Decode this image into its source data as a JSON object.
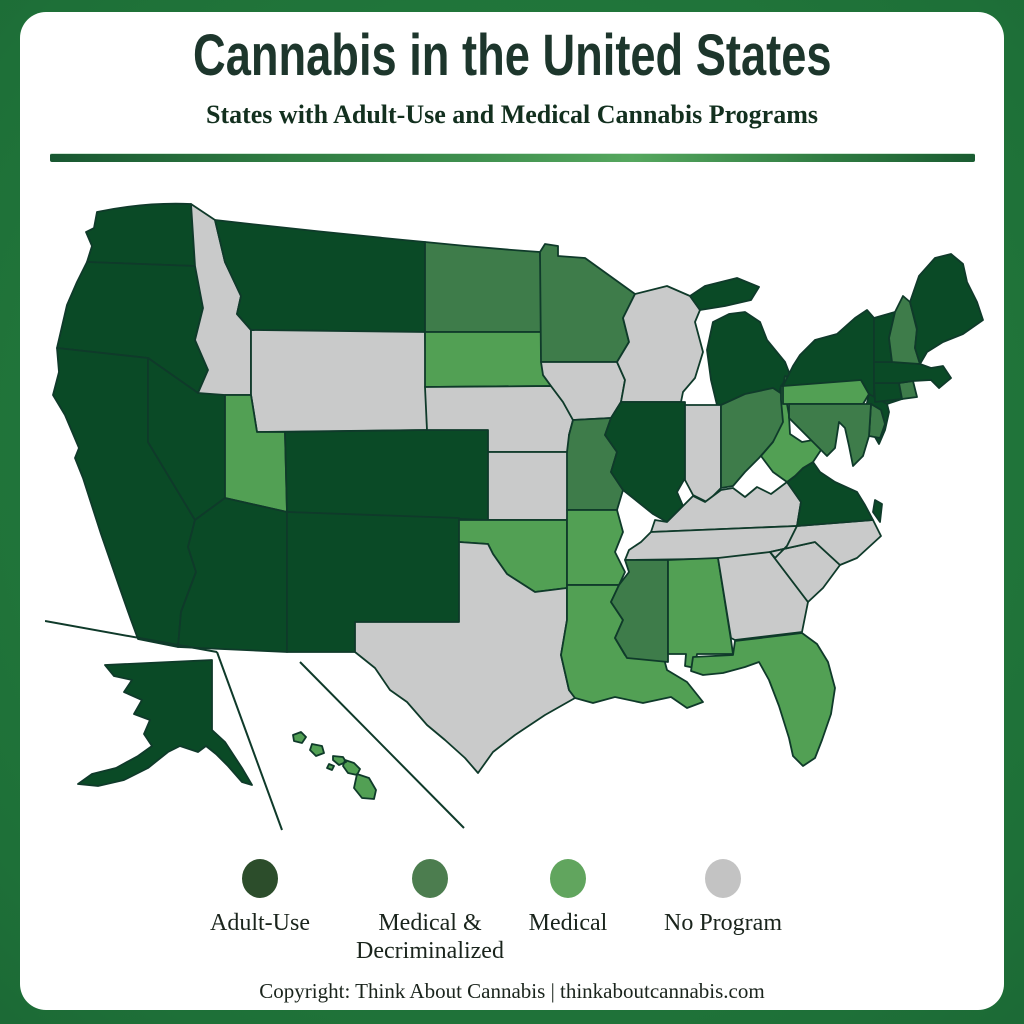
{
  "title": "Cannabis in the United States",
  "subtitle": "States with Adult-Use and Medical Cannabis Programs",
  "copyright": "Copyright: Think About Cannabis | thinkaboutcannabis.com",
  "colors": {
    "frame_center": "#27823f",
    "frame_edge": "#124d2a",
    "card_bg": "#ffffff",
    "title_text": "#1d362c",
    "subtitle_text": "#13301f",
    "divider_dark": "#185731",
    "divider_light": "#55a75e",
    "state_border": "#0f3a2a",
    "label_text": "#1a241c",
    "status": {
      "adult_use": "#0a4a26",
      "medical_decriminalized": "#3e7c4a",
      "medical": "#52a054",
      "no_program": "#c9caca"
    },
    "legend_status": {
      "adult_use": "#2c4d2b",
      "medical_decriminalized": "#4c7d4f",
      "medical": "#61a55e",
      "no_program": "#c3c3c3"
    }
  },
  "legend": {
    "items": [
      {
        "label": "Adult-Use",
        "status": "adult_use"
      },
      {
        "label": "Medical & Decriminalized",
        "status": "medical_decriminalized"
      },
      {
        "label": "Medical",
        "status": "medical"
      },
      {
        "label": "No Program",
        "status": "no_program"
      }
    ]
  },
  "map_data": {
    "type": "choropleth-map",
    "region": "United States",
    "categories": [
      "Adult-Use",
      "Medical & Decriminalized",
      "Medical",
      "No Program"
    ],
    "states": [
      {
        "abbr": "WA",
        "name": "Washington",
        "status": "adult_use"
      },
      {
        "abbr": "OR",
        "name": "Oregon",
        "status": "adult_use"
      },
      {
        "abbr": "CA",
        "name": "California",
        "status": "adult_use"
      },
      {
        "abbr": "NV",
        "name": "Nevada",
        "status": "adult_use"
      },
      {
        "abbr": "ID",
        "name": "Idaho",
        "status": "no_program"
      },
      {
        "abbr": "MT",
        "name": "Montana",
        "status": "adult_use"
      },
      {
        "abbr": "WY",
        "name": "Wyoming",
        "status": "no_program"
      },
      {
        "abbr": "UT",
        "name": "Utah",
        "status": "medical"
      },
      {
        "abbr": "CO",
        "name": "Colorado",
        "status": "adult_use"
      },
      {
        "abbr": "AZ",
        "name": "Arizona",
        "status": "adult_use"
      },
      {
        "abbr": "NM",
        "name": "New Mexico",
        "status": "adult_use"
      },
      {
        "abbr": "ND",
        "name": "North Dakota",
        "status": "medical_decriminalized"
      },
      {
        "abbr": "SD",
        "name": "South Dakota",
        "status": "medical"
      },
      {
        "abbr": "NE",
        "name": "Nebraska",
        "status": "no_program"
      },
      {
        "abbr": "KS",
        "name": "Kansas",
        "status": "no_program"
      },
      {
        "abbr": "OK",
        "name": "Oklahoma",
        "status": "medical"
      },
      {
        "abbr": "TX",
        "name": "Texas",
        "status": "no_program"
      },
      {
        "abbr": "MN",
        "name": "Minnesota",
        "status": "medical_decriminalized"
      },
      {
        "abbr": "IA",
        "name": "Iowa",
        "status": "no_program"
      },
      {
        "abbr": "MO",
        "name": "Missouri",
        "status": "medical_decriminalized"
      },
      {
        "abbr": "AR",
        "name": "Arkansas",
        "status": "medical"
      },
      {
        "abbr": "LA",
        "name": "Louisiana",
        "status": "medical"
      },
      {
        "abbr": "WI",
        "name": "Wisconsin",
        "status": "no_program"
      },
      {
        "abbr": "IL",
        "name": "Illinois",
        "status": "adult_use"
      },
      {
        "abbr": "MI",
        "name": "Michigan",
        "status": "adult_use"
      },
      {
        "abbr": "IN",
        "name": "Indiana",
        "status": "no_program"
      },
      {
        "abbr": "OH",
        "name": "Ohio",
        "status": "medical_decriminalized"
      },
      {
        "abbr": "KY",
        "name": "Kentucky",
        "status": "no_program"
      },
      {
        "abbr": "TN",
        "name": "Tennessee",
        "status": "no_program"
      },
      {
        "abbr": "MS",
        "name": "Mississippi",
        "status": "medical_decriminalized"
      },
      {
        "abbr": "AL",
        "name": "Alabama",
        "status": "medical"
      },
      {
        "abbr": "GA",
        "name": "Georgia",
        "status": "no_program"
      },
      {
        "abbr": "FL",
        "name": "Florida",
        "status": "medical"
      },
      {
        "abbr": "SC",
        "name": "South Carolina",
        "status": "no_program"
      },
      {
        "abbr": "NC",
        "name": "North Carolina",
        "status": "no_program"
      },
      {
        "abbr": "VA",
        "name": "Virginia",
        "status": "adult_use"
      },
      {
        "abbr": "WV",
        "name": "West Virginia",
        "status": "medical"
      },
      {
        "abbr": "PA",
        "name": "Pennsylvania",
        "status": "medical"
      },
      {
        "abbr": "NY",
        "name": "New York",
        "status": "adult_use"
      },
      {
        "abbr": "NJ",
        "name": "New Jersey",
        "status": "adult_use"
      },
      {
        "abbr": "DE",
        "name": "Delaware",
        "status": "medical_decriminalized"
      },
      {
        "abbr": "MD",
        "name": "Maryland",
        "status": "medical_decriminalized"
      },
      {
        "abbr": "CT",
        "name": "Connecticut",
        "status": "adult_use"
      },
      {
        "abbr": "RI",
        "name": "Rhode Island",
        "status": "medical_decriminalized"
      },
      {
        "abbr": "MA",
        "name": "Massachusetts",
        "status": "adult_use"
      },
      {
        "abbr": "VT",
        "name": "Vermont",
        "status": "adult_use"
      },
      {
        "abbr": "NH",
        "name": "New Hampshire",
        "status": "medical_decriminalized"
      },
      {
        "abbr": "ME",
        "name": "Maine",
        "status": "adult_use"
      },
      {
        "abbr": "AK",
        "name": "Alaska",
        "status": "adult_use"
      },
      {
        "abbr": "HI",
        "name": "Hawaii",
        "status": "medical"
      }
    ]
  }
}
